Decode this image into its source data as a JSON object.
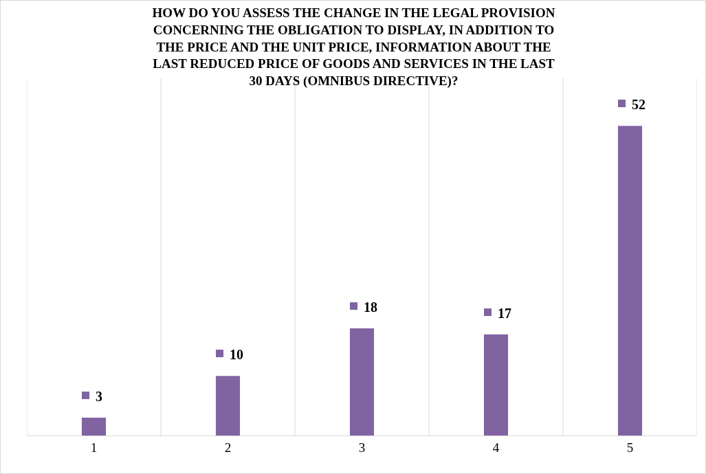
{
  "chart_data": {
    "type": "bar",
    "title": "HOW DO YOU ASSESS THE CHANGE IN THE LEGAL PROVISION\nCONCERNING THE OBLIGATION TO DISPLAY, IN ADDITION TO\nTHE PRICE AND THE UNIT PRICE, INFORMATION ABOUT THE\nLAST REDUCED PRICE OF GOODS AND SERVICES IN THE LAST\n30 DAYS (OMNIBUS DIRECTIVE)?",
    "categories": [
      "1",
      "2",
      "3",
      "4",
      "5"
    ],
    "values": [
      3,
      10,
      18,
      17,
      52
    ],
    "color": "#8064a2",
    "ylim": [
      0,
      60
    ],
    "tick_labels": "x",
    "grid": "x",
    "data_labels": true
  }
}
